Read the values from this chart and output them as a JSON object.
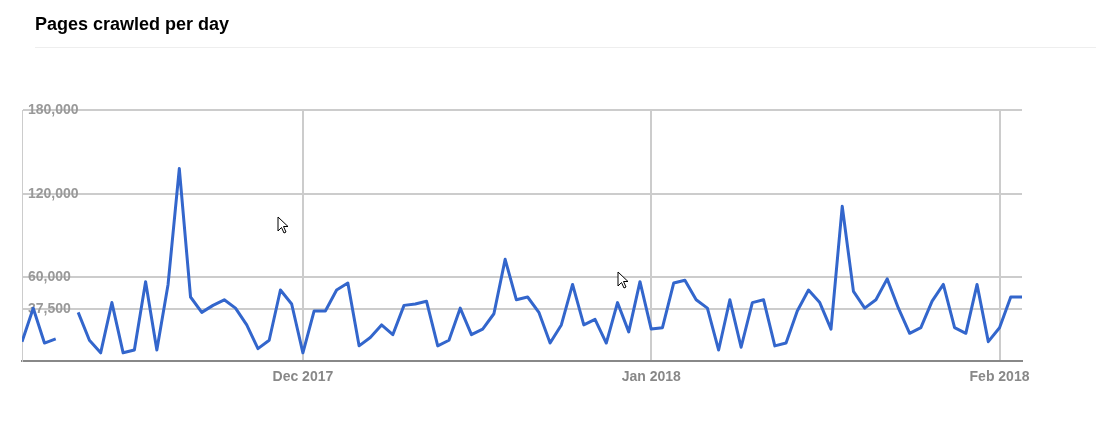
{
  "chart_data": {
    "type": "line",
    "title": "Pages crawled per day",
    "xlim": [
      "2017-11-06",
      "2018-02-03"
    ],
    "xticks": [
      {
        "value": "2017-12-01",
        "label": "Dec 2017"
      },
      {
        "value": "2018-01-01",
        "label": "Jan 2018"
      },
      {
        "value": "2018-02-01",
        "label": "Feb 2018"
      }
    ],
    "ylim": [
      0,
      180000
    ],
    "yticks": [
      {
        "value": 37500,
        "label": "37,500"
      },
      {
        "value": 60000,
        "label": "60,000"
      },
      {
        "value": 120000,
        "label": "120,000"
      },
      {
        "value": 180000,
        "label": "180,000"
      }
    ],
    "grid": true,
    "series": [
      {
        "color": "#3366cc",
        "x": [
          "2017-11-06",
          "2017-11-07",
          "2017-11-08",
          "2017-11-09",
          "2017-11-10",
          "2017-11-11",
          "2017-11-12",
          "2017-11-13",
          "2017-11-14",
          "2017-11-15",
          "2017-11-16",
          "2017-11-17",
          "2017-11-18",
          "2017-11-19",
          "2017-11-20",
          "2017-11-21",
          "2017-11-22",
          "2017-11-23",
          "2017-11-24",
          "2017-11-25",
          "2017-11-26",
          "2017-11-27",
          "2017-11-28",
          "2017-11-29",
          "2017-11-30",
          "2017-12-01",
          "2017-12-02",
          "2017-12-03",
          "2017-12-04",
          "2017-12-05",
          "2017-12-06",
          "2017-12-07",
          "2017-12-08",
          "2017-12-09",
          "2017-12-10",
          "2017-12-11",
          "2017-12-12",
          "2017-12-13",
          "2017-12-14",
          "2017-12-15",
          "2017-12-16",
          "2017-12-17",
          "2017-12-18",
          "2017-12-19",
          "2017-12-20",
          "2017-12-21",
          "2017-12-22",
          "2017-12-23",
          "2017-12-24",
          "2017-12-25",
          "2017-12-26",
          "2017-12-27",
          "2017-12-28",
          "2017-12-29",
          "2017-12-30",
          "2017-12-31",
          "2018-01-01",
          "2018-01-02",
          "2018-01-03",
          "2018-01-04",
          "2018-01-05",
          "2018-01-06",
          "2018-01-07",
          "2018-01-08",
          "2018-01-09",
          "2018-01-10",
          "2018-01-11",
          "2018-01-12",
          "2018-01-13",
          "2018-01-14",
          "2018-01-15",
          "2018-01-16",
          "2018-01-17",
          "2018-01-18",
          "2018-01-19",
          "2018-01-20",
          "2018-01-21",
          "2018-01-22",
          "2018-01-23",
          "2018-01-24",
          "2018-01-25",
          "2018-01-26",
          "2018-01-27",
          "2018-01-28",
          "2018-01-29",
          "2018-01-30",
          "2018-01-31",
          "2018-02-01",
          "2018-02-02",
          "2018-02-03"
        ],
        "values": [
          14000,
          38000,
          13000,
          16000,
          null,
          35000,
          15000,
          6000,
          42000,
          6000,
          8000,
          57000,
          8000,
          55000,
          138000,
          46000,
          35000,
          40000,
          44000,
          38000,
          26000,
          9000,
          15000,
          51000,
          41000,
          6000,
          36000,
          36000,
          51000,
          56000,
          11000,
          17000,
          26000,
          19000,
          40000,
          41000,
          43000,
          11000,
          15000,
          38000,
          19000,
          23000,
          34000,
          73000,
          44000,
          46000,
          35000,
          13000,
          26000,
          55000,
          26000,
          30000,
          13000,
          42000,
          21000,
          57000,
          23000,
          24000,
          56000,
          58000,
          44000,
          38000,
          8000,
          44000,
          10000,
          42000,
          44000,
          11000,
          13000,
          36000,
          51000,
          42000,
          23000,
          111000,
          50000,
          38000,
          44000,
          59000,
          38000,
          20000,
          24000,
          43000,
          55000,
          24000,
          20000,
          55000,
          14000,
          24000,
          46000,
          46000
        ]
      }
    ]
  }
}
